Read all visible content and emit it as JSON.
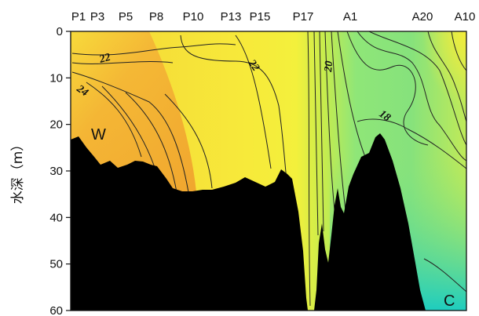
{
  "chart_data": {
    "type": "heatmap",
    "y_axis": {
      "label": "水深（m）",
      "ticks": [
        "0",
        "10",
        "20",
        "30",
        "40",
        "50",
        "60"
      ],
      "ylim": [
        0,
        60
      ],
      "inverted": true
    },
    "x_axis": {
      "station_labels": [
        "P1",
        "P3",
        "P5",
        "P8",
        "P10",
        "P13",
        "P15",
        "P17",
        "A1",
        "A20",
        "A10"
      ]
    },
    "contour_labels": [
      "22",
      "24",
      "22",
      "20",
      "18"
    ],
    "annotations": [
      "W",
      "C"
    ],
    "color_scale": {
      "warm": "#f0a22e",
      "mid": "#f6e93c",
      "cool": "#1fcfc0"
    },
    "contour_values": [
      18,
      20,
      22,
      24
    ]
  }
}
